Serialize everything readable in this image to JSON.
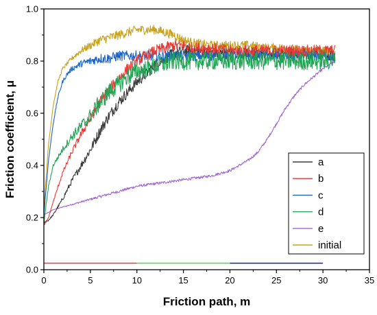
{
  "chart_data": {
    "type": "line",
    "title": "",
    "xlabel": "Friction path, m",
    "ylabel": "Friction coefficient, μ",
    "xlim": [
      0,
      35
    ],
    "ylim": [
      0.0,
      1.0
    ],
    "xticks": [
      "0",
      "5",
      "10",
      "15",
      "20",
      "25",
      "30",
      "35"
    ],
    "xtick_values": [
      0,
      5,
      10,
      15,
      20,
      25,
      30,
      35
    ],
    "yticks": [
      "0.0",
      "0.2",
      "0.4",
      "0.6",
      "0.8",
      "1.0"
    ],
    "ytick_values": [
      0.0,
      0.2,
      0.4,
      0.6,
      0.8,
      1.0
    ],
    "grid": false,
    "legend_position": "bottom-right",
    "series": [
      {
        "name": "a",
        "color": "#3a3a3a",
        "noise": 0.022,
        "x": [
          0,
          0.5,
          1,
          2,
          3,
          4,
          5,
          6,
          7,
          8,
          9,
          10,
          11,
          12,
          13,
          14,
          15,
          16,
          18,
          20,
          22,
          24,
          26,
          28,
          30,
          31.3
        ],
        "y": [
          0.18,
          0.19,
          0.21,
          0.27,
          0.34,
          0.4,
          0.46,
          0.53,
          0.59,
          0.64,
          0.68,
          0.72,
          0.75,
          0.79,
          0.81,
          0.83,
          0.84,
          0.84,
          0.83,
          0.83,
          0.83,
          0.83,
          0.83,
          0.83,
          0.83,
          0.82
        ]
      },
      {
        "name": "b",
        "color": "#e53935",
        "noise": 0.022,
        "x": [
          0,
          0.5,
          1,
          2,
          3,
          4,
          5,
          6,
          7,
          8,
          9,
          10,
          11,
          12,
          13,
          14,
          15,
          16,
          18,
          20,
          22,
          24,
          26,
          28,
          30,
          31.3
        ],
        "y": [
          0.17,
          0.2,
          0.26,
          0.37,
          0.45,
          0.52,
          0.58,
          0.64,
          0.69,
          0.73,
          0.77,
          0.8,
          0.82,
          0.84,
          0.85,
          0.86,
          0.86,
          0.85,
          0.85,
          0.84,
          0.84,
          0.84,
          0.84,
          0.84,
          0.84,
          0.84
        ]
      },
      {
        "name": "c",
        "color": "#1e64c8",
        "noise": 0.02,
        "x": [
          0,
          0.5,
          1,
          1.5,
          2,
          2.5,
          3,
          4,
          5,
          6,
          7,
          8,
          9,
          10,
          12,
          14,
          16,
          18,
          20,
          22,
          24,
          26,
          28,
          30,
          31.3
        ],
        "y": [
          0.21,
          0.42,
          0.56,
          0.66,
          0.72,
          0.75,
          0.77,
          0.79,
          0.8,
          0.81,
          0.81,
          0.82,
          0.82,
          0.82,
          0.82,
          0.82,
          0.82,
          0.82,
          0.82,
          0.82,
          0.82,
          0.82,
          0.82,
          0.82,
          0.82
        ]
      },
      {
        "name": "d",
        "color": "#1fa553",
        "noise": 0.035,
        "x": [
          0,
          0.5,
          1,
          2,
          3,
          4,
          5,
          6,
          7,
          8,
          9,
          10,
          11,
          12,
          13,
          14,
          15,
          16,
          18,
          20,
          22,
          24,
          26,
          28,
          30,
          31.3
        ],
        "y": [
          0.18,
          0.32,
          0.4,
          0.46,
          0.51,
          0.55,
          0.59,
          0.64,
          0.68,
          0.71,
          0.74,
          0.76,
          0.77,
          0.78,
          0.79,
          0.8,
          0.8,
          0.8,
          0.8,
          0.8,
          0.8,
          0.8,
          0.8,
          0.8,
          0.8,
          0.8
        ]
      },
      {
        "name": "e",
        "color": "#a066d8",
        "noise": 0.005,
        "x": [
          0,
          1,
          2,
          4,
          6,
          8,
          10,
          12,
          14,
          16,
          17,
          18,
          19,
          20,
          21,
          22,
          23,
          24,
          25,
          26,
          27,
          28,
          29,
          30,
          31.3
        ],
        "y": [
          0.21,
          0.23,
          0.24,
          0.26,
          0.28,
          0.3,
          0.32,
          0.33,
          0.34,
          0.35,
          0.355,
          0.36,
          0.37,
          0.38,
          0.4,
          0.42,
          0.45,
          0.5,
          0.56,
          0.62,
          0.67,
          0.71,
          0.74,
          0.77,
          0.8
        ]
      },
      {
        "name": "initial",
        "color": "#c9a21a",
        "noise": 0.018,
        "x": [
          0,
          0.5,
          1,
          1.5,
          2,
          3,
          4,
          5,
          6,
          7,
          8,
          9,
          10,
          11,
          12,
          13,
          14,
          15,
          16,
          18,
          20,
          22,
          24,
          26,
          28,
          30,
          31.3
        ],
        "y": [
          0.24,
          0.48,
          0.63,
          0.72,
          0.77,
          0.81,
          0.84,
          0.86,
          0.88,
          0.89,
          0.9,
          0.91,
          0.92,
          0.92,
          0.92,
          0.91,
          0.9,
          0.88,
          0.87,
          0.86,
          0.86,
          0.86,
          0.85,
          0.85,
          0.84,
          0.84,
          0.83
        ]
      }
    ],
    "bottom_segments": [
      {
        "x_start": 0,
        "x_end": 10,
        "y": 0.025,
        "color": "#e53935"
      },
      {
        "x_start": 10,
        "x_end": 20,
        "y": 0.025,
        "color": "#44dd44"
      },
      {
        "x_start": 20,
        "x_end": 30,
        "y": 0.025,
        "color": "#1a1aa0"
      }
    ]
  }
}
